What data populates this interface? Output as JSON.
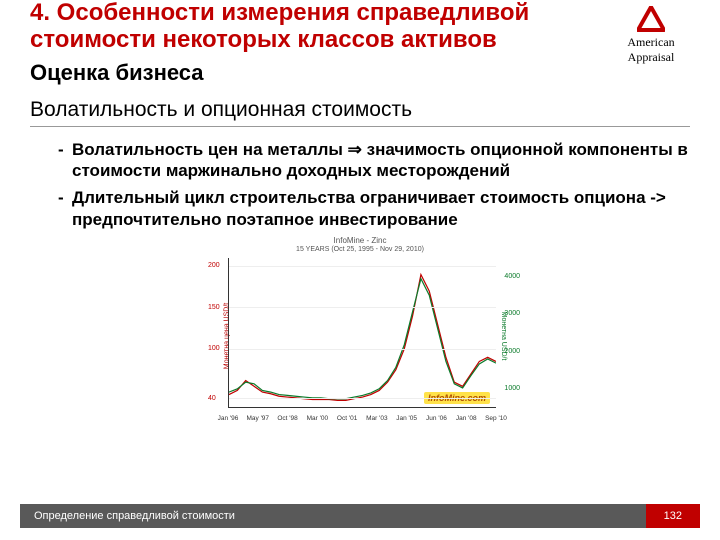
{
  "title": "4. Особенности измерения справедливой стоимости некоторых классов активов",
  "subtitle": "Оценка бизнеса",
  "logo": {
    "line1": "American",
    "line2": "Appraisal",
    "mark_color": "#c00000"
  },
  "section": "Волатильность и опционная стоимость",
  "bullets": [
    "Волатильность цен на металлы ⇒ значимость опционной компоненты в стоимости маржинально доходных месторождений",
    "Длительный цикл строительства ограничивает стоимость опциона -> предпочтительно поэтапное инвестирование"
  ],
  "chart": {
    "type": "line",
    "title": "InfoMine - Zinc",
    "subtitle": "15 YEARS (Oct 25, 1995 - Nov 29, 2010)",
    "watermark": "InfoMine.com",
    "y_left": {
      "label": "Монетна цена USD/t",
      "ticks": [
        40,
        100,
        150,
        200
      ],
      "color": "#c00000",
      "min": 30,
      "max": 210
    },
    "y_right": {
      "label": "Монетна USD/t",
      "ticks": [
        1000,
        2000,
        3000,
        4000
      ],
      "color": "#0a7a2a"
    },
    "x_ticks": [
      "Jan '96",
      "May '97",
      "Oct '98",
      "Mar '00",
      "Oct '01",
      "Mar '03",
      "Jan '05",
      "Jun '06",
      "Jan '08",
      "Sep '10"
    ],
    "series": [
      {
        "name": "red",
        "color": "#c00000",
        "stroke": 1.2,
        "points": [
          45,
          50,
          62,
          55,
          48,
          46,
          43,
          42,
          41,
          40,
          39,
          39,
          39,
          38,
          38,
          40,
          42,
          45,
          50,
          60,
          75,
          100,
          140,
          190,
          170,
          130,
          90,
          60,
          55,
          70,
          85,
          90,
          85
        ]
      },
      {
        "name": "green",
        "color": "#0a7a2a",
        "stroke": 1.2,
        "points": [
          48,
          52,
          60,
          58,
          50,
          48,
          45,
          44,
          43,
          42,
          41,
          41,
          40,
          40,
          40,
          42,
          44,
          47,
          52,
          62,
          78,
          105,
          145,
          185,
          165,
          125,
          85,
          58,
          53,
          68,
          82,
          88,
          83
        ]
      }
    ],
    "grid_color": "#eeeeee",
    "bg": "#ffffff"
  },
  "footer": {
    "text": "Определение справедливой стоимости",
    "page": "132"
  }
}
